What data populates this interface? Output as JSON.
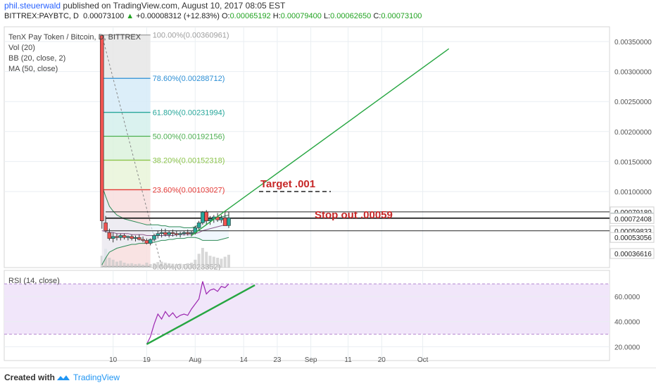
{
  "header": {
    "author": "phil.steuerwald",
    "published_text": "published on TradingView.com, August 10, 2017 08:05 EST",
    "symbol": "BITTREX:PAYBTC, D",
    "last": "0.00073100",
    "change": "+0.00008312 (+12.83%)",
    "o_label": "O:",
    "o": "0.00065192",
    "h_label": "H:",
    "h": "0.00079400",
    "l_label": "L:",
    "l": "0.00062650",
    "c_label": "C:",
    "c": "0.00073100"
  },
  "legend": {
    "title": "TenX Pay Token / Bitcoin, D, BITTREX",
    "vol": "Vol (20)",
    "bb": "BB (20, close, 2)",
    "ma": "MA (50, close)",
    "rsi": "RSI (14, close)"
  },
  "annotations": {
    "target": "Target .001",
    "stop": "Stop out .00059"
  },
  "footer": {
    "created_with": "Created with",
    "brand": "TradingView"
  },
  "colors": {
    "up": "#26a69a",
    "down": "#ef5350",
    "grid": "#e9eef2",
    "trendline": "#26a641",
    "rsi": "#9c27b0",
    "annotation_red": "#c62828"
  },
  "chart_data": [
    {
      "type": "candlestick",
      "title": "TenX Pay Token / Bitcoin, D, BITTREX",
      "price_scale": [
        0.00036616,
        0.0036
      ],
      "y_ticks": [
        "0.00350000",
        "0.00300000",
        "0.00250000",
        "0.00200000",
        "0.00150000",
        "0.00100000"
      ],
      "price_labels": [
        "0.00079180",
        "0.00073100",
        "0.00072408",
        "0.00059833",
        "0.00053056",
        "0.00036616"
      ],
      "x_ticks": [
        "10",
        "19",
        "Aug",
        "14",
        "23",
        "Sep",
        "11",
        "20",
        "Oct"
      ],
      "fib_levels": [
        {
          "label": "100.00%(0.00360961)",
          "pct": 100,
          "price": 0.00360961,
          "color": "#9e9e9e"
        },
        {
          "label": "78.60%(0.00288712)",
          "pct": 78.6,
          "price": 0.00288712,
          "color": "#2d8fd5"
        },
        {
          "label": "61.80%(0.00231994)",
          "pct": 61.8,
          "price": 0.00231994,
          "color": "#26a69a"
        },
        {
          "label": "50.00%(0.00192156)",
          "pct": 50,
          "price": 0.00192156,
          "color": "#4caf50"
        },
        {
          "label": "38.20%(0.00152318)",
          "pct": 38.2,
          "price": 0.00152318,
          "color": "#8bc34a"
        },
        {
          "label": "23.60%(0.00103027)",
          "pct": 23.6,
          "price": 0.00103027,
          "color": "#e53935"
        },
        {
          "label": "0.00%(0.00023352)",
          "pct": 0,
          "price": 0.00023352,
          "color": "#9e9e9e"
        }
      ],
      "support_lines": [
        0.0007918,
        0.000731,
        0.00072408,
        0.00059833
      ],
      "candles": [
        {
          "date": "2017-07-07",
          "o": 0.0036,
          "h": 0.0036,
          "l": 0.00062,
          "c": 0.0007
        },
        {
          "date": "2017-07-08",
          "o": 0.00068,
          "h": 0.00075,
          "l": 0.00058,
          "c": 0.0006
        },
        {
          "date": "2017-07-09",
          "o": 0.00058,
          "h": 0.00062,
          "l": 0.0005,
          "c": 0.00052
        },
        {
          "date": "2017-07-10",
          "o": 0.00052,
          "h": 0.00058,
          "l": 0.00048,
          "c": 0.00054
        },
        {
          "date": "2017-07-11",
          "o": 0.00054,
          "h": 0.00057,
          "l": 0.0005,
          "c": 0.00053
        },
        {
          "date": "2017-07-12",
          "o": 0.00053,
          "h": 0.00057,
          "l": 0.0005,
          "c": 0.00055
        },
        {
          "date": "2017-07-13",
          "o": 0.00055,
          "h": 0.00057,
          "l": 0.00051,
          "c": 0.00053
        },
        {
          "date": "2017-07-14",
          "o": 0.00053,
          "h": 0.00055,
          "l": 0.0005,
          "c": 0.00054
        },
        {
          "date": "2017-07-15",
          "o": 0.00054,
          "h": 0.00056,
          "l": 0.0005,
          "c": 0.00052
        },
        {
          "date": "2017-07-16",
          "o": 0.00052,
          "h": 0.00055,
          "l": 0.00049,
          "c": 0.00053
        },
        {
          "date": "2017-07-17",
          "o": 0.00053,
          "h": 0.00056,
          "l": 0.0005,
          "c": 0.00051
        },
        {
          "date": "2017-07-18",
          "o": 0.00051,
          "h": 0.00054,
          "l": 0.00048,
          "c": 0.0005
        },
        {
          "date": "2017-07-19",
          "o": 0.0005,
          "h": 0.00052,
          "l": 0.00046,
          "c": 0.00047
        },
        {
          "date": "2017-07-20",
          "o": 0.00047,
          "h": 0.00052,
          "l": 0.00045,
          "c": 0.00051
        },
        {
          "date": "2017-07-21",
          "o": 0.00051,
          "h": 0.00057,
          "l": 0.00049,
          "c": 0.00055
        },
        {
          "date": "2017-07-22",
          "o": 0.00055,
          "h": 0.0006,
          "l": 0.00052,
          "c": 0.00057
        },
        {
          "date": "2017-07-23",
          "o": 0.00057,
          "h": 0.00062,
          "l": 0.00053,
          "c": 0.00058
        },
        {
          "date": "2017-07-24",
          "o": 0.00058,
          "h": 0.00062,
          "l": 0.00054,
          "c": 0.00056
        },
        {
          "date": "2017-07-25",
          "o": 0.00056,
          "h": 0.0006,
          "l": 0.00053,
          "c": 0.00058
        },
        {
          "date": "2017-07-26",
          "o": 0.00058,
          "h": 0.00061,
          "l": 0.00054,
          "c": 0.00057
        },
        {
          "date": "2017-07-27",
          "o": 0.00057,
          "h": 0.0006,
          "l": 0.00054,
          "c": 0.00056
        },
        {
          "date": "2017-07-28",
          "o": 0.00056,
          "h": 0.00059,
          "l": 0.00053,
          "c": 0.00057
        },
        {
          "date": "2017-07-29",
          "o": 0.00057,
          "h": 0.0006,
          "l": 0.00055,
          "c": 0.00058
        },
        {
          "date": "2017-07-30",
          "o": 0.00058,
          "h": 0.00061,
          "l": 0.00055,
          "c": 0.00057
        },
        {
          "date": "2017-07-31",
          "o": 0.00057,
          "h": 0.0006,
          "l": 0.00054,
          "c": 0.00058
        },
        {
          "date": "2017-08-01",
          "o": 0.00058,
          "h": 0.00065,
          "l": 0.00056,
          "c": 0.00063
        },
        {
          "date": "2017-08-02",
          "o": 0.00063,
          "h": 0.0007,
          "l": 0.0006,
          "c": 0.00068
        },
        {
          "date": "2017-08-03",
          "o": 0.00068,
          "h": 0.0008,
          "l": 0.00066,
          "c": 0.00079
        },
        {
          "date": "2017-08-04",
          "o": 0.00079,
          "h": 0.00081,
          "l": 0.00066,
          "c": 0.0007
        },
        {
          "date": "2017-08-05",
          "o": 0.0007,
          "h": 0.00075,
          "l": 0.00066,
          "c": 0.00072
        },
        {
          "date": "2017-08-06",
          "o": 0.00072,
          "h": 0.00076,
          "l": 0.00068,
          "c": 0.00074
        },
        {
          "date": "2017-08-07",
          "o": 0.00074,
          "h": 0.00078,
          "l": 0.00069,
          "c": 0.00071
        },
        {
          "date": "2017-08-08",
          "o": 0.00071,
          "h": 0.00076,
          "l": 0.00068,
          "c": 0.00073
        },
        {
          "date": "2017-08-09",
          "o": 0.00073,
          "h": 0.00079,
          "l": 0.00068,
          "c": 0.00065
        },
        {
          "date": "2017-08-10",
          "o": 0.00065192,
          "h": 0.000794,
          "l": 0.0006265,
          "c": 0.000731
        }
      ],
      "bollinger_upper": [
        0.0011,
        0.00095,
        0.00085,
        0.0008,
        0.00076,
        0.00074,
        0.00072,
        0.00071,
        0.0007,
        0.00069,
        0.00068,
        0.00067,
        0.00066,
        0.00066,
        0.00066,
        0.00066,
        0.00065,
        0.00065,
        0.00064,
        0.00064,
        0.00064,
        0.00064,
        0.00063,
        0.00063,
        0.00063,
        0.00064,
        0.00066,
        0.00069,
        0.0007,
        0.00071,
        0.00072,
        0.00073,
        0.00074,
        0.00075,
        0.00076
      ],
      "bollinger_lower": [
        0.00025,
        0.00032,
        0.00038,
        0.0004,
        0.00042,
        0.00043,
        0.00044,
        0.00045,
        0.00046,
        0.00046,
        0.00047,
        0.00047,
        0.00047,
        0.00048,
        0.00048,
        0.00049,
        0.0005,
        0.0005,
        0.00051,
        0.00051,
        0.00052,
        0.00052,
        0.00052,
        0.00053,
        0.00053,
        0.00053,
        0.00052,
        0.0005,
        0.0005,
        0.0005,
        0.0005,
        0.0005,
        0.00051,
        0.00052,
        0.00053
      ],
      "ma50": [
        0.0006,
        0.00059,
        0.00058,
        0.00058,
        0.00057,
        0.00057,
        0.00057,
        0.00057,
        0.00056,
        0.00056,
        0.00056,
        0.00056,
        0.00055,
        0.00055,
        0.00055,
        0.00055,
        0.00055,
        0.00055,
        0.00055,
        0.00055,
        0.00056,
        0.00056,
        0.00056,
        0.00056,
        0.00056,
        0.00057,
        0.00058,
        0.0006,
        0.00061,
        0.00062,
        0.00063,
        0.00064,
        0.00065,
        0.00066,
        0.00067
      ],
      "volume": [
        60,
        95,
        50,
        40,
        30,
        35,
        25,
        20,
        22,
        18,
        20,
        15,
        25,
        18,
        22,
        28,
        30,
        25,
        22,
        20,
        18,
        20,
        18,
        22,
        25,
        40,
        70,
        100,
        80,
        60,
        55,
        50,
        45,
        55,
        65
      ],
      "trendline": [
        {
          "date": "2017-07-31",
          "price": 0.00055
        },
        {
          "date": "2017-10-08",
          "price": 0.00338
        }
      ],
      "target_level": 0.001,
      "stop_level": 0.00059
    },
    {
      "type": "line",
      "title": "RSI (14, close)",
      "y_ticks": [
        "60.0000",
        "40.0000",
        "20.0000"
      ],
      "ylim": [
        18,
        74
      ],
      "band": [
        30,
        70
      ],
      "series": [
        {
          "values": [
            {
              "date": "2017-07-19",
              "v": 22
            },
            {
              "date": "2017-07-20",
              "v": 28
            },
            {
              "date": "2017-07-21",
              "v": 38
            },
            {
              "date": "2017-07-22",
              "v": 46
            },
            {
              "date": "2017-07-23",
              "v": 42
            },
            {
              "date": "2017-07-24",
              "v": 48
            },
            {
              "date": "2017-07-25",
              "v": 44
            },
            {
              "date": "2017-07-26",
              "v": 47
            },
            {
              "date": "2017-07-27",
              "v": 43
            },
            {
              "date": "2017-07-28",
              "v": 45
            },
            {
              "date": "2017-07-29",
              "v": 46
            },
            {
              "date": "2017-07-30",
              "v": 45
            },
            {
              "date": "2017-07-31",
              "v": 50
            },
            {
              "date": "2017-08-01",
              "v": 54
            },
            {
              "date": "2017-08-02",
              "v": 58
            },
            {
              "date": "2017-08-03",
              "v": 72
            },
            {
              "date": "2017-08-04",
              "v": 62
            },
            {
              "date": "2017-08-05",
              "v": 65
            },
            {
              "date": "2017-08-06",
              "v": 66
            },
            {
              "date": "2017-08-07",
              "v": 64
            },
            {
              "date": "2017-08-08",
              "v": 68
            },
            {
              "date": "2017-08-09",
              "v": 67
            },
            {
              "date": "2017-08-10",
              "v": 70
            }
          ]
        }
      ],
      "trendline": [
        {
          "date": "2017-07-19",
          "v": 22
        },
        {
          "date": "2017-08-17",
          "v": 69
        }
      ]
    }
  ]
}
